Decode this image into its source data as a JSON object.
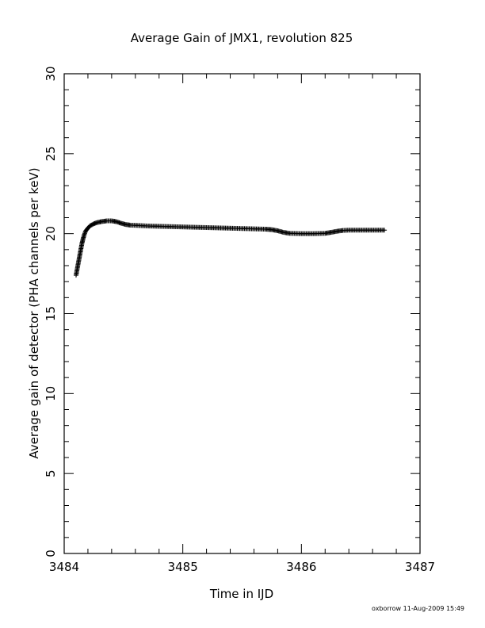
{
  "chart_data": {
    "type": "scatter",
    "title": "Average Gain of JMX1, revolution 825",
    "xlabel": "Time in IJD",
    "ylabel": "Average gain of detector (PHA channels per keV)",
    "xlim": [
      3484,
      3487
    ],
    "ylim": [
      0,
      30
    ],
    "x_ticks": [
      "3484",
      "3485",
      "3486",
      "3487"
    ],
    "y_ticks": [
      "0",
      "5",
      "10",
      "15",
      "20",
      "25",
      "30"
    ],
    "marker": "+",
    "grid": false,
    "x": [
      3484.1,
      3484.11,
      3484.12,
      3484.13,
      3484.14,
      3484.15,
      3484.16,
      3484.17,
      3484.18,
      3484.2,
      3484.22,
      3484.25,
      3484.28,
      3484.32,
      3484.36,
      3484.4,
      3484.44,
      3484.48,
      3484.52,
      3484.56,
      3484.6,
      3484.65,
      3484.7,
      3484.8,
      3484.9,
      3485.0,
      3485.1,
      3485.2,
      3485.3,
      3485.4,
      3485.5,
      3485.6,
      3485.7,
      3485.75,
      3485.8,
      3485.85,
      3485.9,
      3486.0,
      3486.1,
      3486.2,
      3486.25,
      3486.3,
      3486.35,
      3486.4,
      3486.5,
      3486.6,
      3486.7
    ],
    "y": [
      17.4,
      17.8,
      18.2,
      18.6,
      19.0,
      19.4,
      19.7,
      19.95,
      20.15,
      20.35,
      20.5,
      20.62,
      20.7,
      20.76,
      20.8,
      20.8,
      20.75,
      20.65,
      20.57,
      20.53,
      20.52,
      20.5,
      20.48,
      20.46,
      20.44,
      20.42,
      20.4,
      20.38,
      20.36,
      20.34,
      20.32,
      20.3,
      20.28,
      20.25,
      20.18,
      20.08,
      20.02,
      20.0,
      20.0,
      20.02,
      20.08,
      20.15,
      20.2,
      20.22,
      20.22,
      20.22,
      20.22
    ],
    "colors": {
      "marker": "#000000",
      "axes": "#000000",
      "background": "#ffffff"
    }
  },
  "footer": "oxborrow 11-Aug-2009 15:49"
}
